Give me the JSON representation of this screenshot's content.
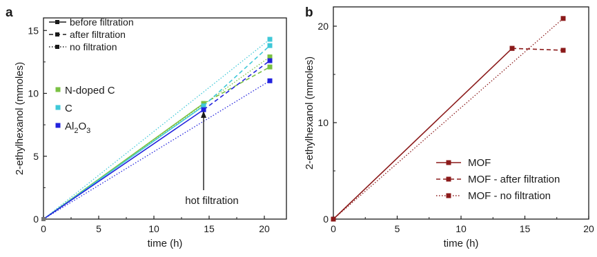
{
  "chart_data": [
    {
      "panel_label": "a",
      "type": "line",
      "xlabel": "time (h)",
      "ylabel": "2-ethylhexanol (mmoles)",
      "xlim": [
        0,
        22
      ],
      "ylim": [
        0,
        16
      ],
      "xticks": [
        0,
        5,
        10,
        15,
        20
      ],
      "yticks": [
        0,
        5,
        10,
        15
      ],
      "grid": false,
      "style_legend": [
        {
          "label": "before filtration",
          "dash": "solid"
        },
        {
          "label": "after filtration",
          "dash": "dashed"
        },
        {
          "label": "no filtration",
          "dash": "dotted"
        }
      ],
      "material_legend": [
        {
          "label": "N-doped C",
          "text": "N-doped C",
          "color": "#7ac143"
        },
        {
          "label": "C",
          "text": "C",
          "color": "#3fc8d8"
        },
        {
          "label": "Al2O3",
          "text": "Al",
          "sub": "2",
          "text2": "O",
          "sub2": "3",
          "color": "#2222dd"
        }
      ],
      "series": [
        {
          "material": "N-doped C",
          "color": "#7ac143",
          "before": [
            [
              0,
              0
            ],
            [
              14.5,
              9.2
            ]
          ],
          "after": [
            [
              14.5,
              9.2
            ],
            [
              20.5,
              12.1
            ]
          ],
          "none": [
            [
              0,
              0
            ],
            [
              20.5,
              12.9
            ]
          ]
        },
        {
          "material": "C",
          "color": "#3fc8d8",
          "before": [
            [
              0,
              0
            ],
            [
              14.5,
              9.0
            ]
          ],
          "after": [
            [
              14.5,
              9.0
            ],
            [
              20.5,
              13.8
            ]
          ],
          "none": [
            [
              0,
              0
            ],
            [
              20.5,
              14.3
            ]
          ]
        },
        {
          "material": "Al2O3",
          "color": "#2222dd",
          "before": [
            [
              0,
              0
            ],
            [
              14.5,
              8.7
            ]
          ],
          "after": [
            [
              14.5,
              8.7
            ],
            [
              20.5,
              12.6
            ]
          ],
          "none": [
            [
              0,
              0
            ],
            [
              20.5,
              11.0
            ]
          ]
        }
      ],
      "annotation": {
        "text": "hot filtration",
        "arrow_x": 14.5,
        "arrow_from_y": 2.3,
        "arrow_to_y": 8.6
      }
    },
    {
      "panel_label": "b",
      "type": "line",
      "xlabel": "time (h)",
      "ylabel": "2-ethylhexanol (mmoles)",
      "xlim": [
        0,
        20
      ],
      "ylim": [
        0,
        22
      ],
      "xticks": [
        0,
        5,
        10,
        15,
        20
      ],
      "yticks": [
        0,
        10,
        20
      ],
      "grid": false,
      "color": "#8b1a1a",
      "series": [
        {
          "name": "MOF",
          "dash": "solid",
          "points": [
            [
              0,
              0
            ],
            [
              14,
              17.7
            ]
          ]
        },
        {
          "name": "MOF - after filtration",
          "dash": "dashed",
          "points": [
            [
              14,
              17.7
            ],
            [
              18,
              17.5
            ]
          ]
        },
        {
          "name": "MOF - no filtration",
          "dash": "dotted",
          "points": [
            [
              0,
              0
            ],
            [
              18,
              20.8
            ]
          ]
        }
      ],
      "legend_position": "lower-right"
    }
  ]
}
